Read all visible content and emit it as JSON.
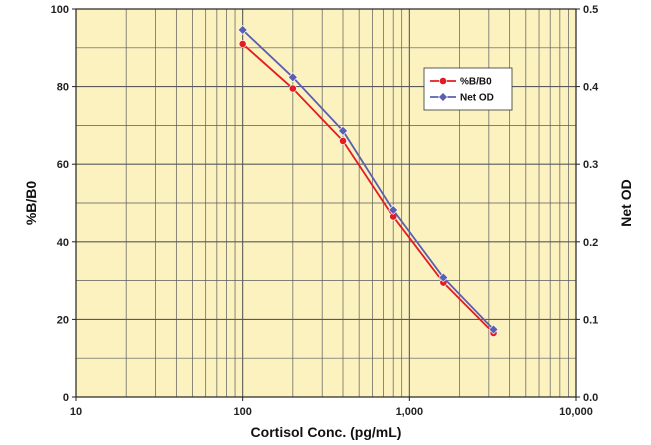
{
  "chart_data": {
    "type": "line",
    "title": "",
    "xlabel": "Cortisol Conc. (pg/mL)",
    "ylabel": "%B/B0",
    "y2label": "Net OD",
    "xscale": "log",
    "xlim": [
      10,
      10000
    ],
    "ylim": [
      0,
      100
    ],
    "y2lim": [
      0,
      0.5
    ],
    "x_ticks": [
      10,
      100,
      1000,
      10000
    ],
    "x_tick_labels": [
      "10",
      "100",
      "1,000",
      "10,000"
    ],
    "y_ticks": [
      0,
      20,
      40,
      60,
      80,
      100
    ],
    "y_tick_labels": [
      "0",
      "20",
      "40",
      "60",
      "80",
      "100"
    ],
    "y2_ticks": [
      0,
      0.1,
      0.2,
      0.3,
      0.4,
      0.5
    ],
    "y2_tick_labels": [
      "0.0",
      "0.1",
      "0.2",
      "0.3",
      "0.4",
      "0.5"
    ],
    "grid": true,
    "legend_position": "top-right",
    "x": [
      100,
      200,
      400,
      800,
      1600,
      3200
    ],
    "series": [
      {
        "name": "%B/B0",
        "axis": "left",
        "color": "#e31b23",
        "marker": "circle",
        "values": [
          91,
          79.5,
          66,
          46.5,
          29.5,
          16.5
        ]
      },
      {
        "name": "Net OD",
        "axis": "right",
        "color": "#5b5fb0",
        "marker": "diamond",
        "values": [
          0.473,
          0.412,
          0.343,
          0.241,
          0.154,
          0.087
        ]
      }
    ],
    "colors": {
      "plot_background": "#fbf2c0",
      "grid": "#5a5a5a"
    }
  }
}
